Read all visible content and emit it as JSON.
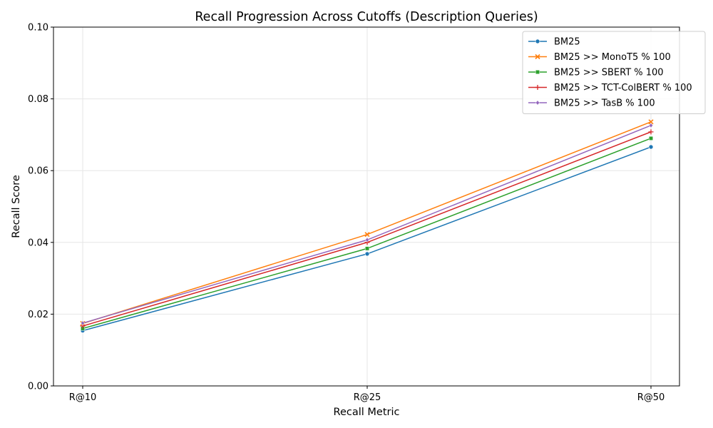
{
  "chart_data": {
    "type": "line",
    "title": "Recall Progression Across Cutoffs (Description Queries)",
    "xlabel": "Recall Metric",
    "ylabel": "Recall Score",
    "categories": [
      "R@10",
      "R@25",
      "R@50"
    ],
    "ylim": [
      0,
      0.1
    ],
    "yticks": [
      "0.00",
      "0.02",
      "0.04",
      "0.06",
      "0.08",
      "0.10"
    ],
    "grid": true,
    "legend_position": "top-right",
    "series": [
      {
        "name": "BM25",
        "color": "#1f77b4",
        "marker": "circle",
        "values": [
          0.0154,
          0.0368,
          0.0666
        ]
      },
      {
        "name": "BM25 >> MonoT5 % 100",
        "color": "#ff7f0e",
        "marker": "x",
        "values": [
          0.0174,
          0.0422,
          0.0736
        ]
      },
      {
        "name": "BM25 >> SBERT % 100",
        "color": "#2ca02c",
        "marker": "square",
        "values": [
          0.016,
          0.0383,
          0.069
        ]
      },
      {
        "name": "BM25 >> TCT-ColBERT % 100",
        "color": "#d62728",
        "marker": "plus",
        "values": [
          0.0167,
          0.04,
          0.0708
        ]
      },
      {
        "name": "BM25 >> TasB % 100",
        "color": "#9467bd",
        "marker": "diamond",
        "values": [
          0.0175,
          0.0407,
          0.0726
        ]
      }
    ]
  }
}
